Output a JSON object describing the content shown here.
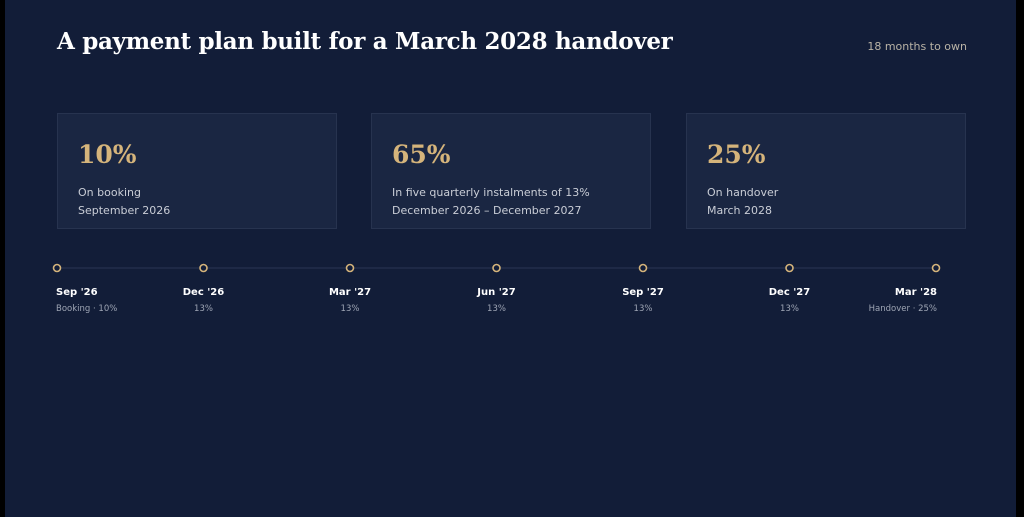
{
  "header": {
    "title": "A payment plan built for a March 2028 handover",
    "subtitle": "18 months to own"
  },
  "cards": [
    {
      "value": "10%",
      "label": "On booking",
      "detail": "September 2026"
    },
    {
      "value": "65%",
      "label": "In five quarterly instalments of 13%",
      "detail": "December 2026 – December 2027"
    },
    {
      "value": "25%",
      "label": "On handover",
      "detail": "March 2028"
    }
  ],
  "timeline": [
    {
      "date": "Sep '26",
      "note": "Booking · 10%"
    },
    {
      "date": "Dec '26",
      "note": "13%"
    },
    {
      "date": "Mar '27",
      "note": "13%"
    },
    {
      "date": "Jun '27",
      "note": "13%"
    },
    {
      "date": "Sep '27",
      "note": "13%"
    },
    {
      "date": "Dec '27",
      "note": "13%"
    },
    {
      "date": "Mar '28",
      "note": "Handover · 25%"
    }
  ]
}
